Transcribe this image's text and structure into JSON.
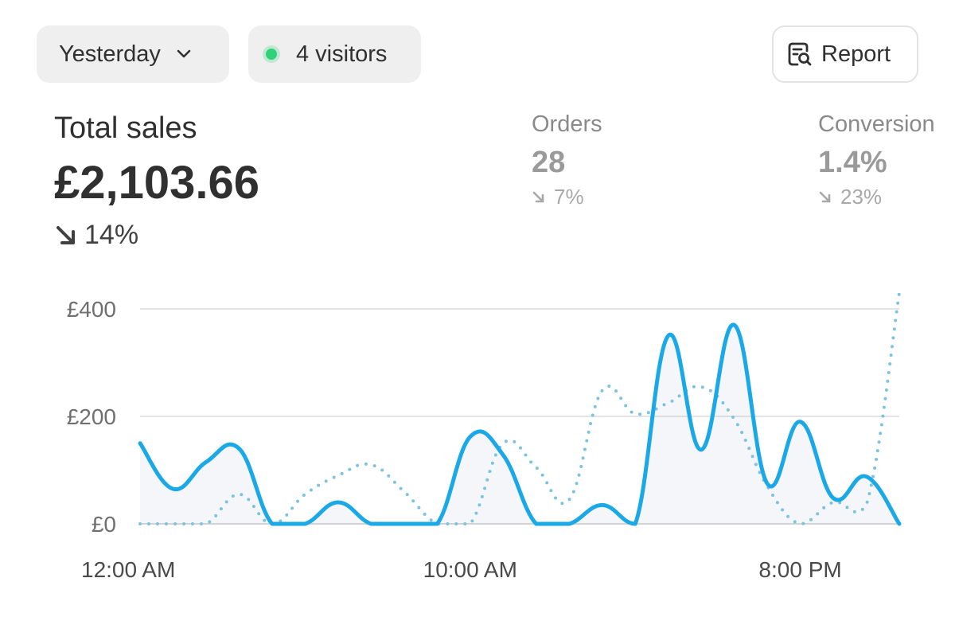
{
  "header": {
    "date_range": "Yesterday",
    "visitors": "4 visitors",
    "report_label": "Report"
  },
  "summary": {
    "title": "Total sales",
    "value": "£2,103.66",
    "change": "14%"
  },
  "orders": {
    "label": "Orders",
    "value": "28",
    "change": "7%"
  },
  "conversion": {
    "label": "Conversion",
    "value": "1.4%",
    "change": "23%"
  },
  "colors": {
    "accent": "#1ba8e6",
    "comparison": "#7cc3df",
    "live_dot": "#2fd17a"
  },
  "chart_data": {
    "type": "line",
    "y_ticks": [
      "£400",
      "£200",
      "£0"
    ],
    "x_tick_labels": [
      "12:00 AM",
      "10:00 AM",
      "8:00 PM"
    ],
    "ylim": [
      0,
      400
    ],
    "grid": true,
    "x_hours": [
      0,
      1,
      2,
      3,
      4,
      5,
      6,
      7,
      8,
      9,
      10,
      11,
      12,
      13,
      14,
      15,
      16,
      17,
      18,
      19,
      20,
      21,
      22,
      23
    ],
    "series": [
      {
        "style": "solid",
        "values": [
          150,
          65,
          115,
          140,
          0,
          0,
          40,
          0,
          0,
          0,
          162,
          128,
          0,
          0,
          35,
          0,
          350,
          138,
          370,
          75,
          190,
          48,
          88,
          0
        ]
      },
      {
        "style": "dotted",
        "values": [
          0,
          0,
          0,
          55,
          0,
          55,
          90,
          110,
          60,
          0,
          0,
          150,
          105,
          45,
          248,
          205,
          225,
          255,
          195,
          70,
          0,
          40,
          35,
          430
        ]
      }
    ]
  }
}
